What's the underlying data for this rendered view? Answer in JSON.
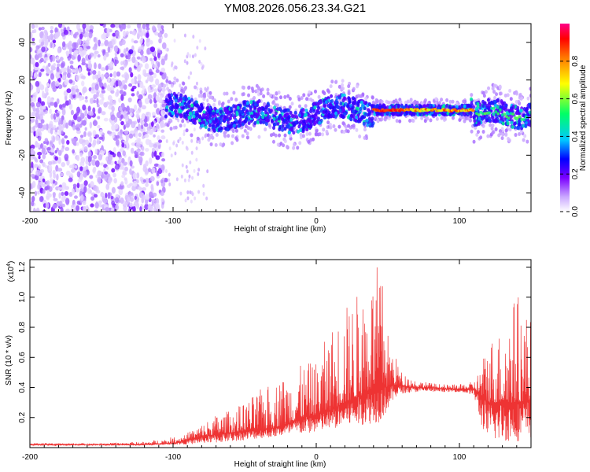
{
  "title": "YM08.2026.056.23.34.G21",
  "chart_data": [
    {
      "type": "heatmap",
      "xlabel": "Height of straight line (km)",
      "ylabel": "Frequency (Hz)",
      "xlim": [
        -200,
        150
      ],
      "ylim": [
        -50,
        50
      ],
      "xticks": [
        -200,
        -100,
        0,
        100
      ],
      "yticks": [
        -40,
        -20,
        0,
        20,
        40
      ],
      "colorbar": {
        "label": "Normalized spectral amplitude",
        "range": [
          0.0,
          1.0
        ],
        "ticks": [
          "0.0",
          "0.2",
          "0.4",
          "0.6",
          "0.8"
        ],
        "colormap": [
          "#ffffff",
          "#b07cff",
          "#6a00ff",
          "#0000ff",
          "#00c8ff",
          "#00ff66",
          "#ffff00",
          "#ff0000",
          "#ff0080"
        ]
      },
      "description_bands": [
        {
          "x_from": -200,
          "x_to": -105,
          "freq_from": -50,
          "freq_to": 50,
          "level": 0.1
        },
        {
          "x_from": -105,
          "x_to": 40,
          "freq_center": 2,
          "freq_halfwidth": 6,
          "level": 0.3
        },
        {
          "x_from": 40,
          "x_to": 110,
          "freq_center": 4,
          "freq_halfwidth": 2,
          "level": 0.9
        },
        {
          "x_from": 110,
          "x_to": 150,
          "freq_center": 2,
          "freq_halfwidth": 7,
          "level": 0.3
        }
      ]
    },
    {
      "type": "line",
      "xlabel": "Height of straight line (km)",
      "ylabel": "SNR (10 * v/v)",
      "yscale_label": "(x10",
      "yscale_exp": "4",
      "yscale_close": ")",
      "xlim": [
        -200,
        150
      ],
      "ylim": [
        0,
        1.25
      ],
      "xticks": [
        -200,
        -100,
        0,
        100
      ],
      "yticks": [
        "0.2",
        "0.4",
        "0.6",
        "0.8",
        "1.0",
        "1.2"
      ],
      "series": [
        {
          "name": "SNR",
          "color": "#ee3333",
          "x": [
            -200,
            -150,
            -120,
            -100,
            -90,
            -80,
            -70,
            -60,
            -50,
            -40,
            -30,
            -20,
            -10,
            0,
            10,
            20,
            30,
            40,
            45,
            50,
            55,
            60,
            70,
            80,
            90,
            100,
            110,
            115,
            120,
            130,
            140,
            150
          ],
          "base": [
            0.02,
            0.02,
            0.02,
            0.03,
            0.05,
            0.07,
            0.09,
            0.1,
            0.11,
            0.12,
            0.13,
            0.16,
            0.2,
            0.22,
            0.25,
            0.3,
            0.34,
            0.4,
            0.42,
            0.4,
            0.42,
            0.41,
            0.4,
            0.4,
            0.39,
            0.39,
            0.39,
            0.35,
            0.3,
            0.3,
            0.3,
            0.32
          ],
          "peak": [
            0.03,
            0.03,
            0.04,
            0.07,
            0.1,
            0.16,
            0.22,
            0.25,
            0.3,
            0.38,
            0.44,
            0.5,
            0.55,
            0.58,
            0.8,
            0.95,
            1.05,
            1.18,
            1.25,
            0.78,
            0.62,
            0.5,
            0.45,
            0.43,
            0.42,
            0.42,
            0.44,
            0.55,
            0.75,
            0.8,
            1.06,
            0.85
          ],
          "trough": [
            0.015,
            0.015,
            0.015,
            0.02,
            0.02,
            0.03,
            0.03,
            0.04,
            0.05,
            0.06,
            0.07,
            0.08,
            0.09,
            0.1,
            0.12,
            0.14,
            0.15,
            0.16,
            0.17,
            0.25,
            0.33,
            0.36,
            0.37,
            0.37,
            0.37,
            0.37,
            0.35,
            0.15,
            0.05,
            0.04,
            0.04,
            0.06
          ]
        }
      ]
    }
  ]
}
